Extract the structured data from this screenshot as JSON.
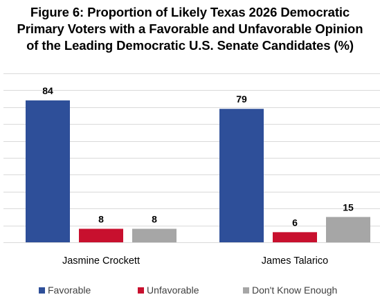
{
  "chart_data": {
    "type": "bar",
    "title_lines": [
      "Figure 6: Proportion of Likely Texas 2026 Democratic",
      "Primary Voters with a Favorable and Unfavorable Opinion",
      "of the Leading Democratic U.S. Senate Candidates (%)"
    ],
    "categories": [
      "Jasmine Crockett",
      "James Talarico"
    ],
    "series": [
      {
        "name": "Favorable",
        "values": [
          84,
          79
        ],
        "color": "#2E4F99"
      },
      {
        "name": "Unfavorable",
        "values": [
          8,
          6
        ],
        "color": "#C8102E"
      },
      {
        "name": "Don't Know Enough",
        "values": [
          8,
          15
        ],
        "color": "#A6A6A6"
      }
    ],
    "ylim": [
      0,
      100
    ],
    "grid": true,
    "gridline_color": "#D9D9D9",
    "legend_position": "bottom",
    "data_labels": true
  }
}
